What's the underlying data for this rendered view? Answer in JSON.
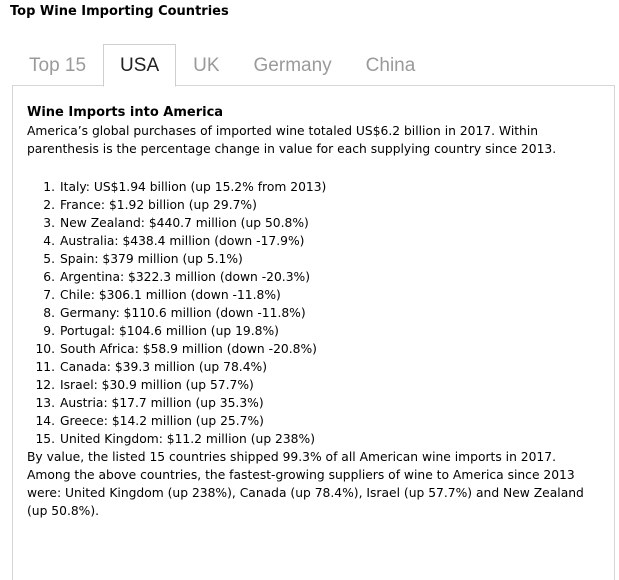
{
  "widget_title": "Top Wine Importing Countries",
  "tabs": [
    {
      "label": "Top 15",
      "active": false
    },
    {
      "label": "USA",
      "active": true
    },
    {
      "label": "UK",
      "active": false
    },
    {
      "label": "Germany",
      "active": false
    },
    {
      "label": "China",
      "active": false
    }
  ],
  "panel": {
    "heading": "Wine Imports into America",
    "intro": "America’s global purchases of imported wine totaled US$6.2 billion in 2017. Within parenthesis is the percentage change in value for each supplying country since 2013.",
    "items": [
      {
        "num": "1.",
        "text": "Italy: US$1.94 billion (up 15.2% from 2013)"
      },
      {
        "num": "2.",
        "text": "France: $1.92 billion (up 29.7%)"
      },
      {
        "num": "3.",
        "text": "New Zealand: $440.7 million (up 50.8%)"
      },
      {
        "num": "4.",
        "text": "Australia: $438.4 million (down -17.9%)"
      },
      {
        "num": "5.",
        "text": "Spain: $379 million (up 5.1%)"
      },
      {
        "num": "6.",
        "text": "Argentina: $322.3 million (down -20.3%)"
      },
      {
        "num": "7.",
        "text": "Chile: $306.1 million (down -11.8%)"
      },
      {
        "num": "8.",
        "text": "Germany: $110.6 million (down -11.8%)"
      },
      {
        "num": "9.",
        "text": "Portugal: $104.6 million (up 19.8%)"
      },
      {
        "num": "10.",
        "text": "South Africa: $58.9 million (down -20.8%)"
      },
      {
        "num": "11.",
        "text": "Canada: $39.3 million (up 78.4%)"
      },
      {
        "num": "12.",
        "text": "Israel: $30.9 million (up 57.7%)"
      },
      {
        "num": "13.",
        "text": "Austria: $17.7 million (up 35.3%)"
      },
      {
        "num": "14.",
        "text": "Greece: $14.2 million (up 25.7%)"
      },
      {
        "num": "15.",
        "text": "United Kingdom: $11.2 million (up 238%)"
      }
    ],
    "summary": "By value, the listed 15 countries shipped 99.3% of all American wine imports in 2017.",
    "growth": "Among the above countries, the fastest-growing suppliers of wine to America since 2013 were: United Kingdom (up 238%), Canada (up 78.4%), Israel (up 57.7%) and New Zealand (up 50.8%)."
  }
}
